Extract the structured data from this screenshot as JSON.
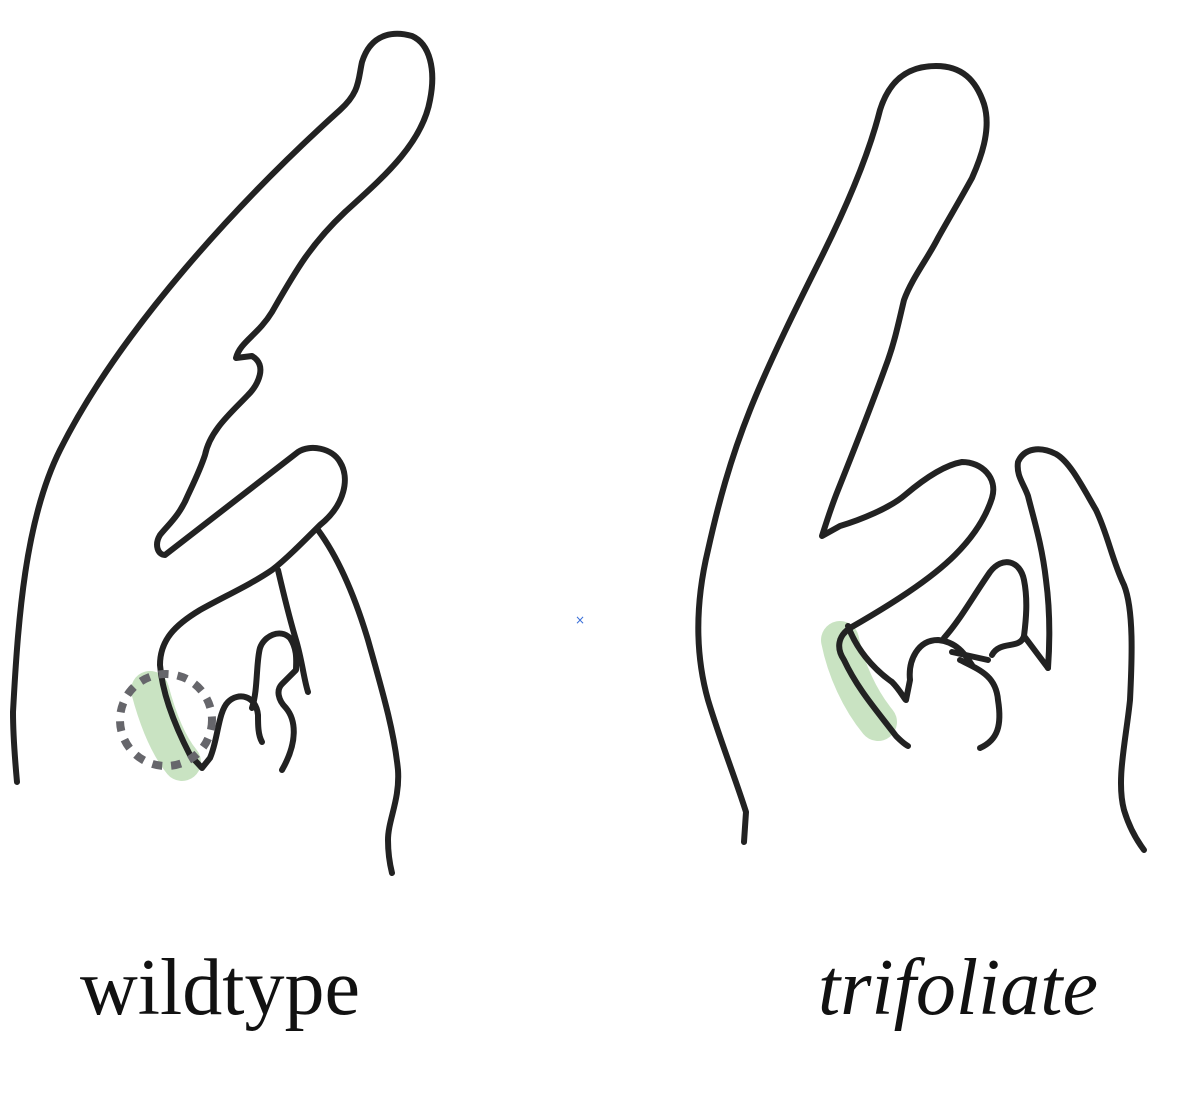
{
  "colors": {
    "outline": "#222222",
    "highlight": "#c9e3c2",
    "dotted_circle": "#66666b",
    "marker": "#3a6fd8"
  },
  "panels": [
    {
      "label": "wildtype",
      "label_style": "roman"
    },
    {
      "label": "trifoliate",
      "label_style": "italic"
    }
  ],
  "marker": {
    "glyph": "×"
  }
}
